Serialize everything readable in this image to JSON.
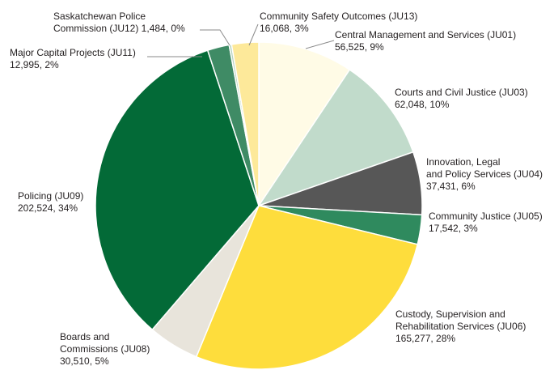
{
  "chart_data": {
    "type": "pie",
    "title": "",
    "slices": [
      {
        "id": "ju01",
        "label_lines": [
          "Central Management and Services (JU01)",
          "56,525, 9%"
        ],
        "value": 56525,
        "percent": "9%",
        "color": "#fffbe6"
      },
      {
        "id": "ju03",
        "label_lines": [
          "Courts and Civil Justice (JU03)",
          "62,048, 10%"
        ],
        "value": 62048,
        "percent": "10%",
        "color": "#c1dbcb"
      },
      {
        "id": "ju04",
        "label_lines": [
          "Innovation, Legal",
          "and Policy Services (JU04)",
          "37,431, 6%"
        ],
        "value": 37431,
        "percent": "6%",
        "color": "#575757"
      },
      {
        "id": "ju05",
        "label_lines": [
          "Community Justice (JU05)",
          "17,542, 3%"
        ],
        "value": 17542,
        "percent": "3%",
        "color": "#2f8a5e"
      },
      {
        "id": "ju06",
        "label_lines": [
          "Custody, Supervision and",
          "Rehabilitation Services (JU06)",
          "165,277, 28%"
        ],
        "value": 165277,
        "percent": "28%",
        "color": "#fedd3c"
      },
      {
        "id": "ju08",
        "label_lines": [
          "Boards and",
          "Commissions (JU08)",
          "30,510, 5%"
        ],
        "value": 30510,
        "percent": "5%",
        "color": "#e8e4db"
      },
      {
        "id": "ju09",
        "label_lines": [
          "Policing (JU09)",
          "202,524, 34%"
        ],
        "value": 202524,
        "percent": "34%",
        "color": "#036a37"
      },
      {
        "id": "ju11",
        "label_lines": [
          "Major Capital Projects (JU11)",
          "12,995, 2%"
        ],
        "value": 12995,
        "percent": "2%",
        "color": "#3f8b65"
      },
      {
        "id": "ju12",
        "label_lines": [
          "Saskatchewan Police",
          "Commission (JU12) 1,484, 0%"
        ],
        "value": 1484,
        "percent": "0%",
        "color": "#b7d4c0"
      },
      {
        "id": "ju13",
        "label_lines": [
          "Community Safety Outcomes (JU13)",
          "16,068, 3%"
        ],
        "value": 16068,
        "percent": "3%",
        "color": "#fde99a"
      }
    ],
    "legend": "none"
  }
}
